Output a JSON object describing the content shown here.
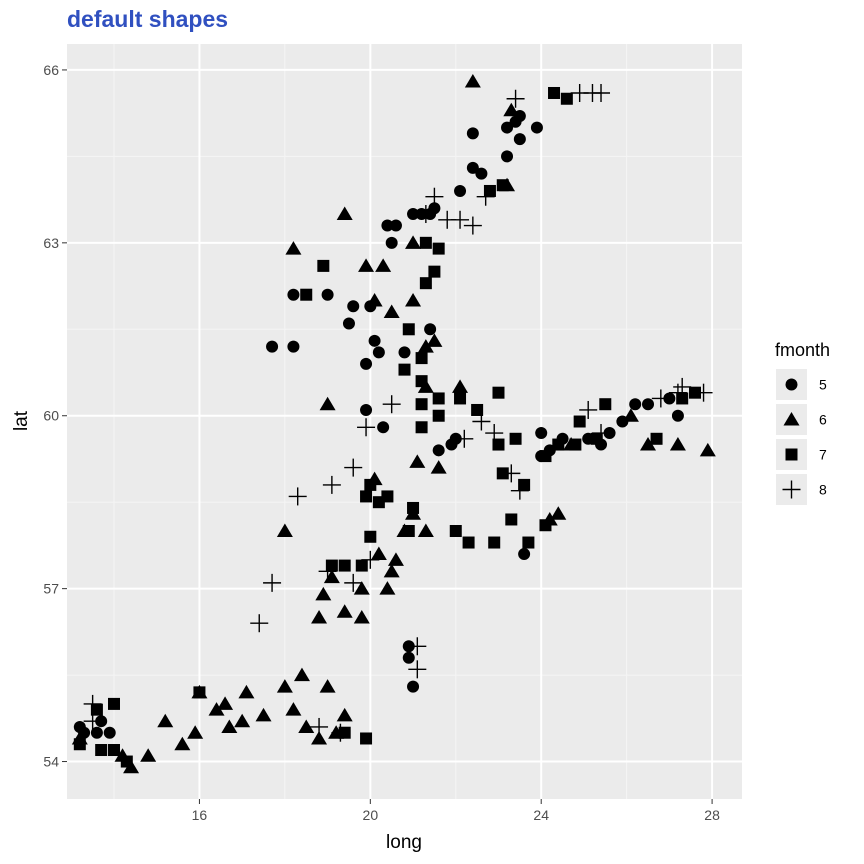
{
  "chart_data": {
    "type": "scatter",
    "title": "default shapes",
    "xlabel": "long",
    "ylabel": "lat",
    "xlim": [
      12.9,
      28.7
    ],
    "ylim": [
      53.35,
      66.45
    ],
    "xticks": [
      16,
      20,
      24,
      28
    ],
    "yticks": [
      54,
      57,
      60,
      63,
      66
    ],
    "grid": true,
    "legend": {
      "title": "fmonth",
      "position": "right"
    },
    "series": [
      {
        "name": "5",
        "shape": "circle",
        "points": [
          [
            13.2,
            54.6
          ],
          [
            13.3,
            54.5
          ],
          [
            13.6,
            54.5
          ],
          [
            13.7,
            54.7
          ],
          [
            13.9,
            54.5
          ],
          [
            17.7,
            61.2
          ],
          [
            18.2,
            62.1
          ],
          [
            18.2,
            61.2
          ],
          [
            19.0,
            62.1
          ],
          [
            19.5,
            61.6
          ],
          [
            19.6,
            61.9
          ],
          [
            19.9,
            60.1
          ],
          [
            19.9,
            60.9
          ],
          [
            20.0,
            61.9
          ],
          [
            20.1,
            61.3
          ],
          [
            20.2,
            61.1
          ],
          [
            20.3,
            59.8
          ],
          [
            20.4,
            63.3
          ],
          [
            20.5,
            63.0
          ],
          [
            20.6,
            63.3
          ],
          [
            20.8,
            61.1
          ],
          [
            20.9,
            56.0
          ],
          [
            20.9,
            55.8
          ],
          [
            21.0,
            55.3
          ],
          [
            21.0,
            63.5
          ],
          [
            21.2,
            63.5
          ],
          [
            21.4,
            63.5
          ],
          [
            21.4,
            61.5
          ],
          [
            21.5,
            63.6
          ],
          [
            21.6,
            59.4
          ],
          [
            21.9,
            59.5
          ],
          [
            22.0,
            59.6
          ],
          [
            22.1,
            63.9
          ],
          [
            22.4,
            64.9
          ],
          [
            22.4,
            64.3
          ],
          [
            22.6,
            64.2
          ],
          [
            23.2,
            64.5
          ],
          [
            23.2,
            65.0
          ],
          [
            23.4,
            65.1
          ],
          [
            23.5,
            64.8
          ],
          [
            23.5,
            65.2
          ],
          [
            23.9,
            65.0
          ],
          [
            23.6,
            57.6
          ],
          [
            24.0,
            59.7
          ],
          [
            24.0,
            59.3
          ],
          [
            24.2,
            59.4
          ],
          [
            24.5,
            59.6
          ],
          [
            25.1,
            59.6
          ],
          [
            25.4,
            59.5
          ],
          [
            25.6,
            59.7
          ],
          [
            25.9,
            59.9
          ],
          [
            26.2,
            60.2
          ],
          [
            26.5,
            60.2
          ],
          [
            27.0,
            60.3
          ],
          [
            27.2,
            60.0
          ]
        ]
      },
      {
        "name": "6",
        "shape": "triangle",
        "points": [
          [
            13.2,
            54.4
          ],
          [
            14.2,
            54.1
          ],
          [
            14.4,
            53.9
          ],
          [
            14.8,
            54.1
          ],
          [
            15.2,
            54.7
          ],
          [
            15.6,
            54.3
          ],
          [
            15.9,
            54.5
          ],
          [
            16.0,
            55.2
          ],
          [
            16.4,
            54.9
          ],
          [
            16.6,
            55.0
          ],
          [
            16.7,
            54.6
          ],
          [
            17.0,
            54.7
          ],
          [
            17.1,
            55.2
          ],
          [
            17.5,
            54.8
          ],
          [
            18.0,
            55.3
          ],
          [
            18.2,
            54.9
          ],
          [
            18.4,
            55.5
          ],
          [
            18.5,
            54.6
          ],
          [
            18.8,
            54.4
          ],
          [
            19.2,
            54.5
          ],
          [
            19.0,
            55.3
          ],
          [
            19.4,
            54.8
          ],
          [
            18.0,
            58.0
          ],
          [
            18.2,
            62.9
          ],
          [
            18.8,
            56.5
          ],
          [
            18.9,
            56.9
          ],
          [
            19.1,
            57.2
          ],
          [
            19.4,
            56.6
          ],
          [
            19.8,
            56.5
          ],
          [
            19.8,
            57.0
          ],
          [
            20.2,
            57.6
          ],
          [
            20.4,
            57.0
          ],
          [
            20.5,
            57.3
          ],
          [
            20.6,
            57.5
          ],
          [
            20.8,
            58.0
          ],
          [
            21.0,
            58.3
          ],
          [
            21.3,
            58.0
          ],
          [
            19.0,
            60.2
          ],
          [
            19.4,
            63.5
          ],
          [
            19.9,
            62.6
          ],
          [
            20.1,
            62.0
          ],
          [
            20.3,
            62.6
          ],
          [
            20.5,
            61.8
          ],
          [
            21.0,
            63.0
          ],
          [
            21.0,
            62.0
          ],
          [
            21.3,
            61.2
          ],
          [
            21.5,
            61.3
          ],
          [
            21.3,
            60.5
          ],
          [
            22.1,
            60.5
          ],
          [
            20.1,
            58.9
          ],
          [
            21.1,
            59.2
          ],
          [
            21.6,
            59.1
          ],
          [
            22.4,
            65.8
          ],
          [
            23.2,
            64.0
          ],
          [
            23.3,
            65.3
          ],
          [
            24.2,
            58.2
          ],
          [
            24.4,
            58.3
          ],
          [
            24.7,
            59.5
          ],
          [
            26.1,
            60.0
          ],
          [
            26.5,
            59.5
          ],
          [
            27.2,
            59.5
          ],
          [
            27.9,
            59.4
          ]
        ]
      },
      {
        "name": "7",
        "shape": "square",
        "points": [
          [
            13.2,
            54.3
          ],
          [
            13.6,
            54.9
          ],
          [
            13.7,
            54.2
          ],
          [
            14.0,
            55.0
          ],
          [
            14.0,
            54.2
          ],
          [
            14.3,
            54.0
          ],
          [
            16.0,
            55.2
          ],
          [
            18.5,
            62.1
          ],
          [
            18.9,
            62.6
          ],
          [
            19.9,
            54.4
          ],
          [
            19.4,
            54.5
          ],
          [
            19.1,
            57.4
          ],
          [
            19.4,
            57.4
          ],
          [
            19.8,
            57.4
          ],
          [
            19.9,
            58.6
          ],
          [
            20.0,
            57.9
          ],
          [
            20.0,
            58.8
          ],
          [
            20.2,
            58.5
          ],
          [
            20.4,
            58.6
          ],
          [
            20.9,
            58.0
          ],
          [
            21.0,
            58.4
          ],
          [
            22.0,
            58.0
          ],
          [
            22.3,
            57.8
          ],
          [
            22.9,
            57.8
          ],
          [
            23.7,
            57.8
          ],
          [
            24.1,
            58.1
          ],
          [
            23.3,
            58.2
          ],
          [
            23.6,
            58.8
          ],
          [
            23.1,
            59.0
          ],
          [
            23.0,
            59.5
          ],
          [
            23.4,
            59.6
          ],
          [
            23.0,
            60.4
          ],
          [
            22.5,
            60.1
          ],
          [
            22.1,
            60.3
          ],
          [
            21.6,
            60.3
          ],
          [
            21.6,
            60.0
          ],
          [
            21.2,
            59.8
          ],
          [
            21.2,
            60.2
          ],
          [
            20.8,
            60.8
          ],
          [
            21.2,
            60.6
          ],
          [
            21.3,
            62.3
          ],
          [
            21.5,
            62.5
          ],
          [
            21.3,
            63.0
          ],
          [
            21.6,
            62.9
          ],
          [
            20.9,
            61.5
          ],
          [
            21.2,
            61.0
          ],
          [
            22.8,
            63.9
          ],
          [
            23.1,
            64.0
          ],
          [
            24.3,
            65.6
          ],
          [
            24.6,
            65.5
          ],
          [
            24.1,
            59.3
          ],
          [
            24.4,
            59.5
          ],
          [
            24.8,
            59.5
          ],
          [
            24.9,
            59.9
          ],
          [
            25.3,
            59.6
          ],
          [
            25.5,
            60.2
          ],
          [
            26.7,
            59.6
          ],
          [
            27.3,
            60.3
          ],
          [
            27.6,
            60.4
          ]
        ]
      },
      {
        "name": "8",
        "shape": "plus",
        "points": [
          [
            13.5,
            55.0
          ],
          [
            13.5,
            54.7
          ],
          [
            17.4,
            56.4
          ],
          [
            17.7,
            57.1
          ],
          [
            18.3,
            58.6
          ],
          [
            19.1,
            58.8
          ],
          [
            19.6,
            59.1
          ],
          [
            19.6,
            57.1
          ],
          [
            19.9,
            59.8
          ],
          [
            20.5,
            60.2
          ],
          [
            20.0,
            57.5
          ],
          [
            19.0,
            57.3
          ],
          [
            18.8,
            54.6
          ],
          [
            19.3,
            54.5
          ],
          [
            21.3,
            63.5
          ],
          [
            21.5,
            63.8
          ],
          [
            21.8,
            63.4
          ],
          [
            22.1,
            63.4
          ],
          [
            22.4,
            63.3
          ],
          [
            22.7,
            63.8
          ],
          [
            23.4,
            65.5
          ],
          [
            25.2,
            65.6
          ],
          [
            24.9,
            65.6
          ],
          [
            25.4,
            65.6
          ],
          [
            21.1,
            55.6
          ],
          [
            21.1,
            56.0
          ],
          [
            22.2,
            59.6
          ],
          [
            22.6,
            59.9
          ],
          [
            22.9,
            59.7
          ],
          [
            23.3,
            59.0
          ],
          [
            23.5,
            58.7
          ],
          [
            26.8,
            60.3
          ],
          [
            27.2,
            60.4
          ],
          [
            27.3,
            60.5
          ],
          [
            27.8,
            60.4
          ],
          [
            25.1,
            60.1
          ],
          [
            25.4,
            59.7
          ]
        ]
      }
    ]
  }
}
